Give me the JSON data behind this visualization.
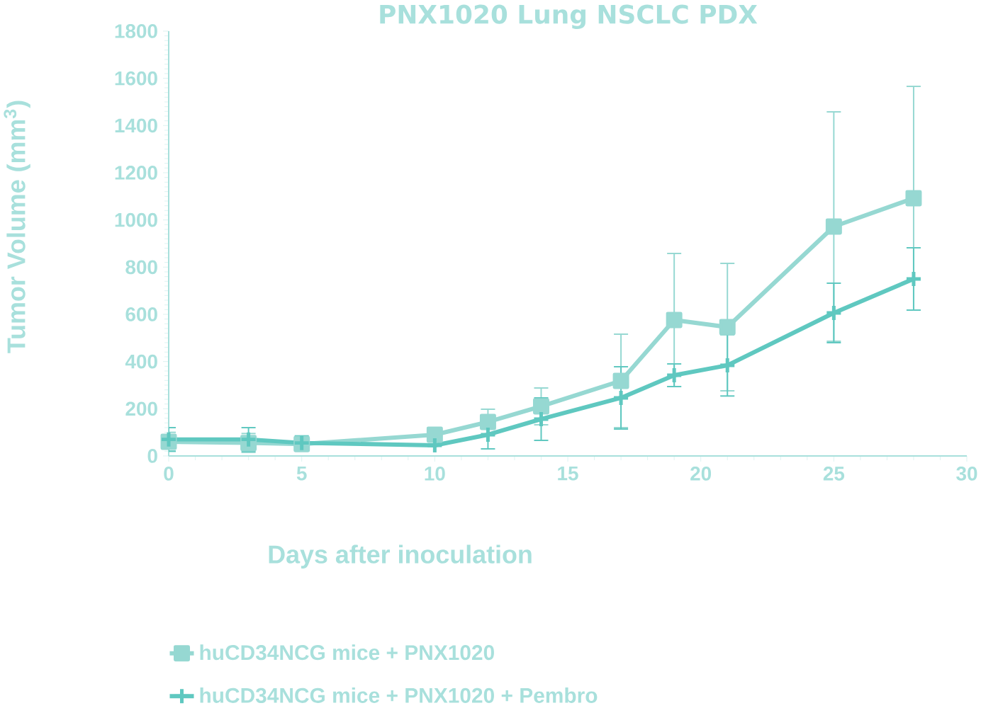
{
  "chart_data": {
    "type": "line",
    "title": "PNX1020 Lung NSCLC PDX",
    "xlabel": "Days after inoculation",
    "ylabel": "Tumor Volume (mm$^{3}$)",
    "x": [
      0,
      3,
      5,
      10,
      12,
      14,
      17,
      19,
      21,
      25,
      28
    ],
    "series": [
      {
        "name": "huCD34NCG mice + PNX1020",
        "color": "#96d8d2",
        "marker": "square",
        "values": [
          60,
          55,
          50,
          90,
          144,
          210,
          318,
          576,
          546,
          972,
          1092
        ],
        "errors": [
          40,
          40,
          20,
          null,
          54,
          78,
          198,
          282,
          270,
          486,
          474
        ]
      },
      {
        "name": "huCD34NCG mice + PNX1020 + Pembro",
        "color": "#5fc8c0",
        "marker": "cross",
        "values": [
          70,
          70,
          55,
          45,
          90,
          156,
          246,
          342,
          384,
          606,
          750
        ],
        "errors": [
          50,
          50,
          30,
          null,
          60,
          90,
          132,
          48,
          130,
          126,
          132
        ]
      }
    ],
    "xlim": [
      0,
      30
    ],
    "xticks": [
      0,
      5,
      10,
      15,
      20,
      25,
      30
    ],
    "ylim": [
      0,
      1800
    ],
    "yticks": [
      0,
      200,
      400,
      600,
      800,
      1000,
      1200,
      1400,
      1600,
      1800
    ],
    "grid": false,
    "legend": "bottom",
    "line_style": "solid"
  }
}
